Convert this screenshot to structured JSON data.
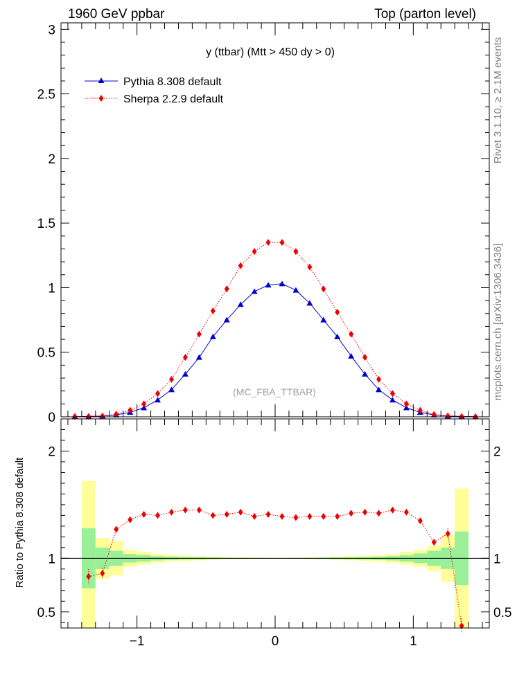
{
  "header": {
    "left": "1960 GeV ppbar",
    "right": "Top (parton level)"
  },
  "side_labels": {
    "rivet": "Rivet 3.1.10, ≥ 2.1M events",
    "mcplots": "mcplots.cern.ch [arXiv:1306.3436]"
  },
  "chart_data": [
    {
      "type": "line",
      "title": "y (ttbar) (Mtt > 450 dy > 0)",
      "watermark": "(MC_FBA_TTBAR)",
      "xlim": [
        -1.55,
        1.55
      ],
      "ylim": [
        0,
        3.05
      ],
      "x_ticks": [
        -1,
        0,
        1
      ],
      "y_ticks": [
        {
          "value": 0,
          "label": "0"
        },
        {
          "value": 0.5,
          "label": "0.5"
        },
        {
          "value": 1,
          "label": "1"
        },
        {
          "value": 1.5,
          "label": "1.5"
        },
        {
          "value": 2,
          "label": "2"
        },
        {
          "value": 2.5,
          "label": "2.5"
        },
        {
          "value": 3,
          "label": "3"
        }
      ],
      "legend_position": "top-left",
      "x": [
        -1.45,
        -1.35,
        -1.25,
        -1.15,
        -1.05,
        -0.95,
        -0.85,
        -0.75,
        -0.65,
        -0.55,
        -0.45,
        -0.35,
        -0.25,
        -0.15,
        -0.05,
        0.05,
        0.15,
        0.25,
        0.35,
        0.45,
        0.55,
        0.65,
        0.75,
        0.85,
        0.95,
        1.05,
        1.15,
        1.25,
        1.35,
        1.45
      ],
      "series": [
        {
          "name": "Pythia 8.308 default",
          "color": "#0000cc",
          "marker": "triangle",
          "values": [
            0.001,
            0.003,
            0.006,
            0.015,
            0.035,
            0.07,
            0.13,
            0.21,
            0.33,
            0.46,
            0.62,
            0.75,
            0.87,
            0.97,
            1.02,
            1.03,
            0.98,
            0.88,
            0.75,
            0.62,
            0.47,
            0.33,
            0.21,
            0.13,
            0.07,
            0.035,
            0.015,
            0.006,
            0.003,
            0.001
          ]
        },
        {
          "name": "Sherpa 2.2.9 default",
          "color": "#ee0000",
          "marker": "diamond",
          "values": [
            0.002,
            0.003,
            0.006,
            0.02,
            0.05,
            0.1,
            0.18,
            0.29,
            0.46,
            0.64,
            0.82,
            0.99,
            1.17,
            1.28,
            1.35,
            1.35,
            1.28,
            1.16,
            0.99,
            0.81,
            0.64,
            0.46,
            0.29,
            0.18,
            0.1,
            0.05,
            0.018,
            0.007,
            0.003,
            0.001
          ]
        }
      ]
    },
    {
      "type": "line",
      "ylabel": "Ratio to Pythia 8.308 default",
      "xlim": [
        -1.55,
        1.55
      ],
      "ylim": [
        0.35,
        2.3
      ],
      "x_ticks": [
        {
          "value": -1,
          "label": "−1"
        },
        {
          "value": 0,
          "label": "0"
        },
        {
          "value": 1,
          "label": "1"
        }
      ],
      "y_ticks": [
        {
          "value": 0.5,
          "label": "0.5"
        },
        {
          "value": 1,
          "label": "1"
        },
        {
          "value": 2,
          "label": "2"
        }
      ],
      "x": [
        -1.35,
        -1.25,
        -1.15,
        -1.05,
        -0.95,
        -0.85,
        -0.75,
        -0.65,
        -0.55,
        -0.45,
        -0.35,
        -0.25,
        -0.15,
        -0.05,
        0.05,
        0.15,
        0.25,
        0.35,
        0.45,
        0.55,
        0.65,
        0.75,
        0.85,
        0.95,
        1.05,
        1.15,
        1.25,
        1.35
      ],
      "ratio": {
        "name": "Sherpa 2.2.9 default",
        "color": "#ee0000",
        "values": [
          0.83,
          0.86,
          1.27,
          1.36,
          1.41,
          1.4,
          1.43,
          1.45,
          1.45,
          1.4,
          1.41,
          1.43,
          1.39,
          1.41,
          1.39,
          1.38,
          1.39,
          1.39,
          1.39,
          1.42,
          1.43,
          1.42,
          1.45,
          1.43,
          1.35,
          1.15,
          1.23,
          0.37
        ],
        "errors": [
          0.07,
          0.05,
          0.03,
          0.02,
          0.015,
          0.01,
          0.01,
          0.01,
          0.01,
          0.01,
          0.01,
          0.01,
          0.01,
          0.01,
          0.01,
          0.01,
          0.01,
          0.01,
          0.01,
          0.01,
          0.01,
          0.01,
          0.01,
          0.01,
          0.02,
          0.03,
          0.05,
          0.07
        ]
      },
      "bands": {
        "edges": [
          -1.4,
          -1.3,
          -1.2,
          -1.1,
          -1.0,
          -0.9,
          -0.8,
          -0.7,
          -0.6,
          -0.5,
          -0.4,
          -0.3,
          -0.2,
          -0.1,
          0.0,
          0.1,
          0.2,
          0.3,
          0.4,
          0.5,
          0.6,
          0.7,
          0.8,
          0.9,
          1.0,
          1.1,
          1.2,
          1.3,
          1.4
        ],
        "yellow_color": "#ffff99",
        "green_color": "#99f099",
        "yellow_half": [
          0.72,
          0.19,
          0.16,
          0.08,
          0.06,
          0.04,
          0.03,
          0.025,
          0.02,
          0.015,
          0.01,
          0.008,
          0.006,
          0.005,
          0.005,
          0.006,
          0.008,
          0.01,
          0.015,
          0.02,
          0.025,
          0.03,
          0.04,
          0.06,
          0.08,
          0.12,
          0.22,
          0.65
        ],
        "green_half": [
          0.28,
          0.1,
          0.07,
          0.04,
          0.03,
          0.02,
          0.015,
          0.012,
          0.01,
          0.008,
          0.006,
          0.005,
          0.004,
          0.003,
          0.003,
          0.004,
          0.005,
          0.006,
          0.008,
          0.01,
          0.012,
          0.015,
          0.02,
          0.03,
          0.045,
          0.07,
          0.1,
          0.25
        ]
      }
    }
  ]
}
